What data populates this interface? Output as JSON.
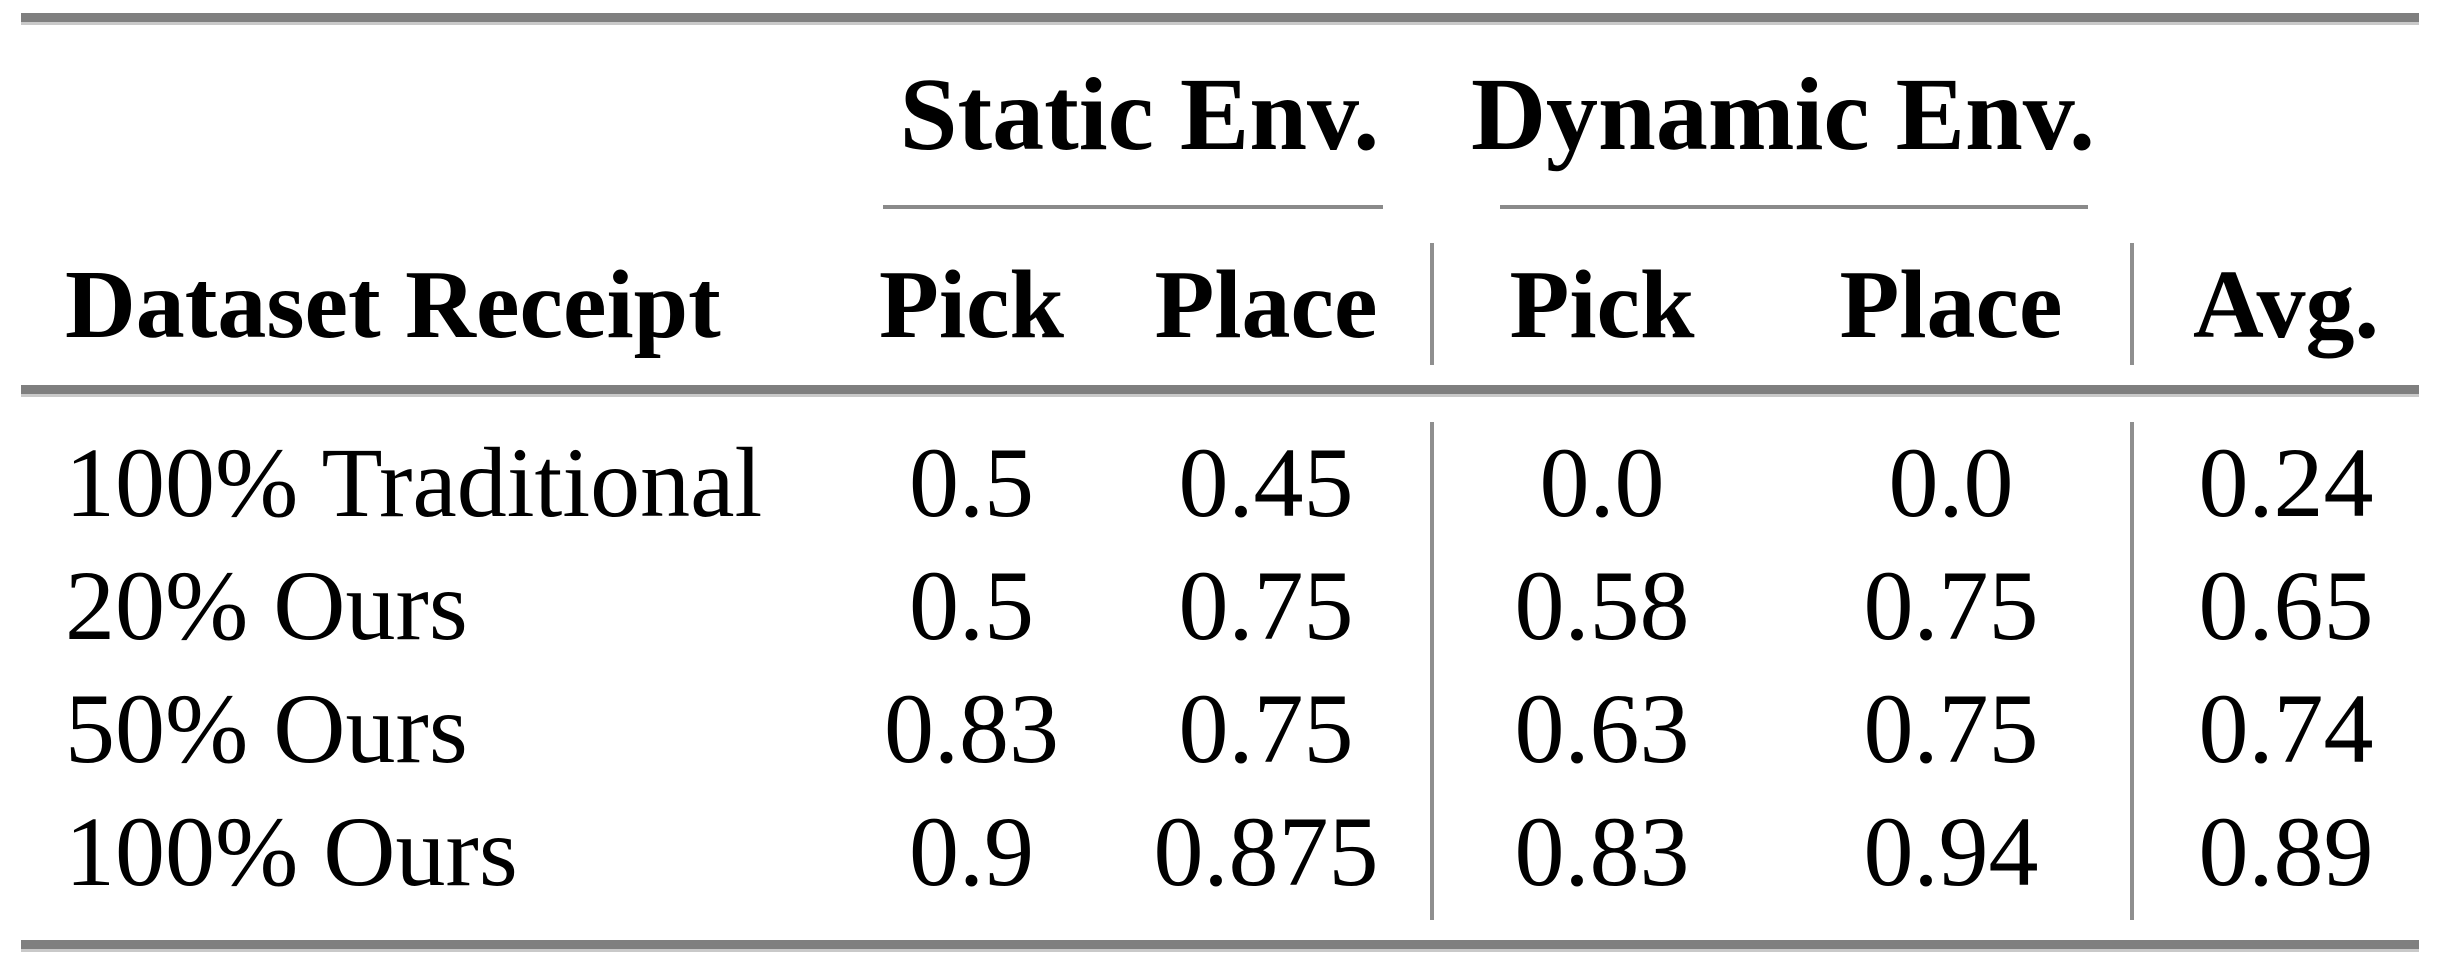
{
  "table": {
    "group_headers": {
      "static": "Static Env.",
      "dynamic": "Dynamic Env."
    },
    "columns": {
      "dataset": "Dataset Receipt",
      "static_pick": "Pick",
      "static_place": "Place",
      "dynamic_pick": "Pick",
      "dynamic_place": "Place",
      "avg": "Avg."
    },
    "rows": [
      {
        "label": "100% Traditional",
        "static_pick": "0.5",
        "static_place": "0.45",
        "dynamic_pick": "0.0",
        "dynamic_place": "0.0",
        "avg": "0.24"
      },
      {
        "label": "20% Ours",
        "static_pick": "0.5",
        "static_place": "0.75",
        "dynamic_pick": "0.58",
        "dynamic_place": "0.75",
        "avg": "0.65"
      },
      {
        "label": "50% Ours",
        "static_pick": "0.83",
        "static_place": "0.75",
        "dynamic_pick": "0.63",
        "dynamic_place": "0.75",
        "avg": "0.74"
      },
      {
        "label": "100% Ours",
        "static_pick": "0.9",
        "static_place": "0.875",
        "dynamic_pick": "0.83",
        "dynamic_place": "0.94",
        "avg": "0.89"
      }
    ]
  },
  "colors": {
    "thick_rule": "#7f7f7f",
    "thick_rule_edge": "#c9c9c9",
    "thin_rule": "#8f8f8f",
    "text": "#000000",
    "background": "#ffffff"
  }
}
